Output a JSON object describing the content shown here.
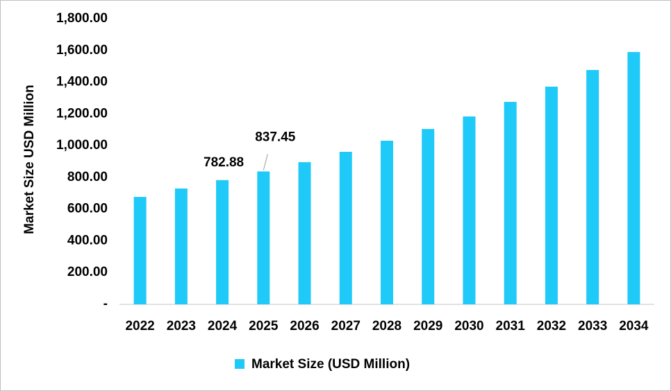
{
  "chart_data": {
    "type": "bar",
    "y_label": "Market Size USD Million",
    "categories": [
      "2022",
      "2023",
      "2024",
      "2025",
      "2026",
      "2027",
      "2028",
      "2029",
      "2030",
      "2031",
      "2032",
      "2033",
      "2034"
    ],
    "series": [
      {
        "name": "Market Size (USD Million)",
        "color": "#1fc9f8",
        "values": [
          677,
          730,
          782.88,
          837.45,
          896,
          961,
          1031,
          1105,
          1184,
          1276,
          1372,
          1477,
          1590
        ],
        "value_labels": [
          null,
          null,
          "782.88",
          "837.45",
          null,
          null,
          null,
          null,
          null,
          null,
          null,
          null,
          null
        ]
      }
    ],
    "ylim": [
      0,
      1800
    ],
    "yticks": [
      {
        "value": 0,
        "label": "-"
      },
      {
        "value": 200,
        "label": "200.00"
      },
      {
        "value": 400,
        "label": "400.00"
      },
      {
        "value": 600,
        "label": "600.00"
      },
      {
        "value": 800,
        "label": "800.00"
      },
      {
        "value": 1000,
        "label": "1,000.00"
      },
      {
        "value": 1200,
        "label": "1,200.00"
      },
      {
        "value": 1400,
        "label": "1,400.00"
      },
      {
        "value": 1600,
        "label": "1,600.00"
      },
      {
        "value": 1800,
        "label": "1,800.00"
      }
    ],
    "grid": false,
    "legend": "bottom"
  }
}
